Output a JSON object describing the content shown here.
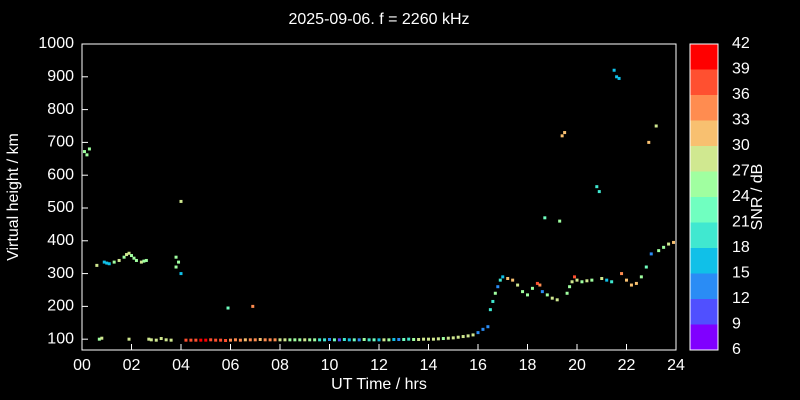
{
  "chart_data": {
    "type": "scatter",
    "title": "2025-09-06. f = 2260 kHz",
    "x_label": "UT Time / hrs",
    "y_label": "Virtual height / km",
    "xlim": [
      0,
      24
    ],
    "xticks": [
      {
        "value": 0,
        "label": "00"
      },
      {
        "value": 2,
        "label": "02"
      },
      {
        "value": 4,
        "label": "04"
      },
      {
        "value": 6,
        "label": "06"
      },
      {
        "value": 8,
        "label": "08"
      },
      {
        "value": 10,
        "label": "10"
      },
      {
        "value": 12,
        "label": "12"
      },
      {
        "value": 14,
        "label": "14"
      },
      {
        "value": 16,
        "label": "16"
      },
      {
        "value": 18,
        "label": "18"
      },
      {
        "value": 20,
        "label": "20"
      },
      {
        "value": 22,
        "label": "22"
      },
      {
        "value": 24,
        "label": "24"
      }
    ],
    "ylim": [
      67,
      1000
    ],
    "yticks": [
      100,
      200,
      300,
      400,
      500,
      600,
      700,
      800,
      900,
      1000
    ],
    "colorbar": {
      "label": "SNR / dB",
      "ticks": [
        6,
        9,
        12,
        15,
        18,
        21,
        24,
        27,
        30,
        33,
        36,
        39,
        42
      ],
      "colors": [
        "#8000ff",
        "#5050ff",
        "#2a8cf5",
        "#10c0e8",
        "#40e8d0",
        "#70ffc0",
        "#a0ffa0",
        "#d0e890",
        "#f8c070",
        "#ff8c50",
        "#ff5030",
        "#ff0000"
      ]
    },
    "x": [
      0.1,
      0.2,
      0.3,
      0.6,
      0.7,
      0.8,
      0.9,
      1.0,
      1.1,
      1.3,
      1.5,
      1.7,
      1.8,
      1.9,
      2.0,
      2.1,
      2.2,
      2.4,
      2.5,
      2.6,
      2.7,
      1.9,
      2.8,
      3.0,
      3.2,
      3.4,
      3.6,
      3.8,
      3.9,
      3.8,
      4.0,
      4.0,
      4.2,
      4.4,
      4.6,
      4.8,
      5.0,
      5.2,
      5.4,
      5.6,
      5.8,
      5.9,
      6.0,
      6.2,
      6.4,
      6.6,
      6.8,
      6.9,
      7.0,
      7.2,
      7.4,
      7.6,
      7.8,
      8.0,
      8.2,
      8.4,
      8.6,
      8.8,
      9.0,
      9.2,
      9.4,
      9.6,
      9.8,
      10.0,
      10.2,
      10.4,
      10.6,
      10.8,
      11.0,
      11.2,
      11.4,
      11.6,
      11.8,
      12.0,
      12.2,
      12.4,
      12.6,
      12.8,
      13.0,
      13.2,
      13.4,
      13.6,
      13.8,
      14.0,
      14.2,
      14.4,
      14.6,
      14.8,
      15.0,
      15.2,
      15.4,
      15.6,
      15.8,
      16.0,
      16.2,
      16.4,
      16.5,
      16.6,
      16.7,
      16.8,
      16.9,
      17.0,
      17.2,
      17.4,
      17.6,
      17.8,
      18.0,
      18.2,
      18.4,
      18.5,
      18.6,
      18.7,
      18.8,
      19.0,
      19.2,
      19.3,
      19.4,
      19.5,
      19.6,
      19.7,
      19.8,
      19.9,
      20.0,
      20.2,
      20.4,
      20.6,
      20.8,
      20.9,
      21.0,
      21.2,
      21.4,
      21.5,
      21.6,
      21.7,
      21.8,
      22.0,
      22.2,
      22.4,
      22.6,
      22.8,
      22.9,
      23.0,
      23.2,
      23.3,
      23.5,
      23.7,
      23.9
    ],
    "values": [
      672,
      662,
      680,
      325,
      100,
      103,
      335,
      332,
      330,
      335,
      340,
      350,
      358,
      362,
      355,
      347,
      340,
      335,
      338,
      340,
      100,
      100,
      98,
      97,
      102,
      98,
      97,
      350,
      335,
      320,
      300,
      520,
      97,
      97,
      97,
      97,
      97,
      98,
      97,
      97,
      96,
      195,
      97,
      98,
      97,
      98,
      98,
      200,
      98,
      99,
      98,
      98,
      98,
      98,
      98,
      98,
      98,
      98,
      98,
      98,
      98,
      98,
      98,
      99,
      98,
      98,
      99,
      98,
      98,
      98,
      99,
      98,
      98,
      98,
      98,
      98,
      99,
      99,
      99,
      100,
      99,
      99,
      100,
      100,
      100,
      101,
      102,
      103,
      104,
      106,
      108,
      110,
      113,
      120,
      130,
      138,
      190,
      215,
      240,
      260,
      280,
      290,
      285,
      280,
      265,
      245,
      235,
      255,
      270,
      265,
      245,
      470,
      235,
      225,
      220,
      460,
      720,
      730,
      240,
      260,
      275,
      290,
      280,
      275,
      278,
      280,
      565,
      550,
      285,
      280,
      275,
      920,
      900,
      895,
      300,
      280,
      265,
      270,
      290,
      320,
      700,
      360,
      750,
      370,
      380,
      390,
      395
    ],
    "snr": [
      26,
      25,
      26,
      27,
      24,
      27,
      16,
      17,
      15,
      26,
      27,
      26,
      27,
      28,
      26,
      25,
      26,
      27,
      25,
      26,
      27,
      29,
      28,
      27,
      28,
      27,
      27,
      26,
      25,
      26,
      15,
      27,
      38,
      37,
      36,
      39,
      40,
      38,
      37,
      36,
      38,
      23,
      33,
      33,
      33,
      32,
      34,
      33,
      33,
      32,
      33,
      34,
      33,
      28,
      27,
      24,
      26,
      24,
      27,
      25,
      24,
      20,
      18,
      14,
      22,
      10,
      20,
      16,
      22,
      12,
      24,
      18,
      21,
      15,
      27,
      24,
      16,
      13,
      22,
      19,
      26,
      27,
      28,
      27,
      28,
      27,
      26,
      28,
      27,
      29,
      28,
      28,
      27,
      12,
      12,
      13,
      20,
      18,
      25,
      12,
      18,
      16,
      30,
      30,
      29,
      26,
      26,
      24,
      36,
      35,
      12,
      22,
      26,
      28,
      27,
      26,
      31,
      30,
      25,
      26,
      27,
      38,
      28,
      26,
      27,
      25,
      20,
      20,
      28,
      17,
      19,
      16,
      16,
      15,
      34,
      32,
      31,
      32,
      24,
      22,
      30,
      14,
      28,
      26,
      24,
      27,
      32
    ]
  }
}
